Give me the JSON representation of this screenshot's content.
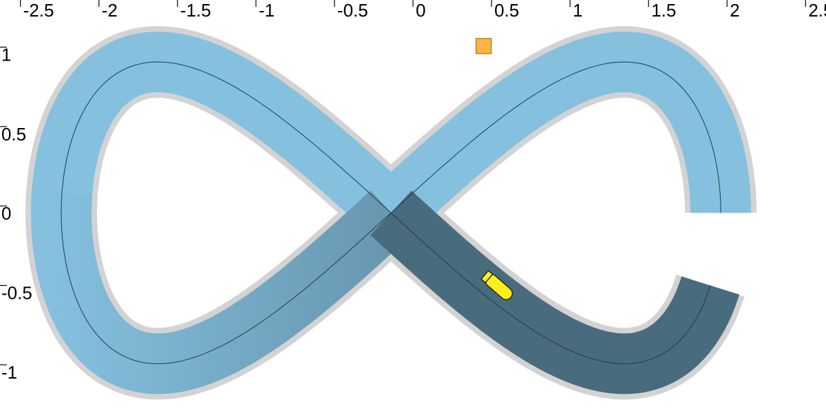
{
  "axes": {
    "x_ticks": [
      {
        "value": -2.5,
        "label": "-2.5"
      },
      {
        "value": -2,
        "label": "-2"
      },
      {
        "value": -1.5,
        "label": "-1.5"
      },
      {
        "value": -1,
        "label": "-1"
      },
      {
        "value": -0.5,
        "label": "-0.5"
      },
      {
        "value": 0,
        "label": "0"
      },
      {
        "value": 0.5,
        "label": "0.5"
      },
      {
        "value": 1,
        "label": "1"
      },
      {
        "value": 1.5,
        "label": "1.5"
      },
      {
        "value": 2,
        "label": "2"
      },
      {
        "value": 2.5,
        "label": "2.5"
      }
    ],
    "y_ticks": [
      {
        "value": 1,
        "label": "1"
      },
      {
        "value": 0.5,
        "label": "0.5"
      },
      {
        "value": 0,
        "label": "0"
      },
      {
        "value": -0.5,
        "label": "-0.5"
      },
      {
        "value": -1,
        "label": "-1"
      }
    ],
    "xlim": [
      -2.63,
      2.63
    ],
    "ylim": [
      -1.26,
      1.34
    ]
  },
  "track": {
    "shape": "figure-eight",
    "path_color": "#1e3a4c",
    "color_light": "#85c0df",
    "color_dark": "#496b7e",
    "halo_color": "#d3d3d3"
  },
  "target": {
    "x": 0.45,
    "y": 1.05,
    "color": "#ffb347"
  },
  "agent": {
    "x": 0.55,
    "y": -0.47,
    "heading_deg": -41,
    "color": "#ffee1a"
  }
}
